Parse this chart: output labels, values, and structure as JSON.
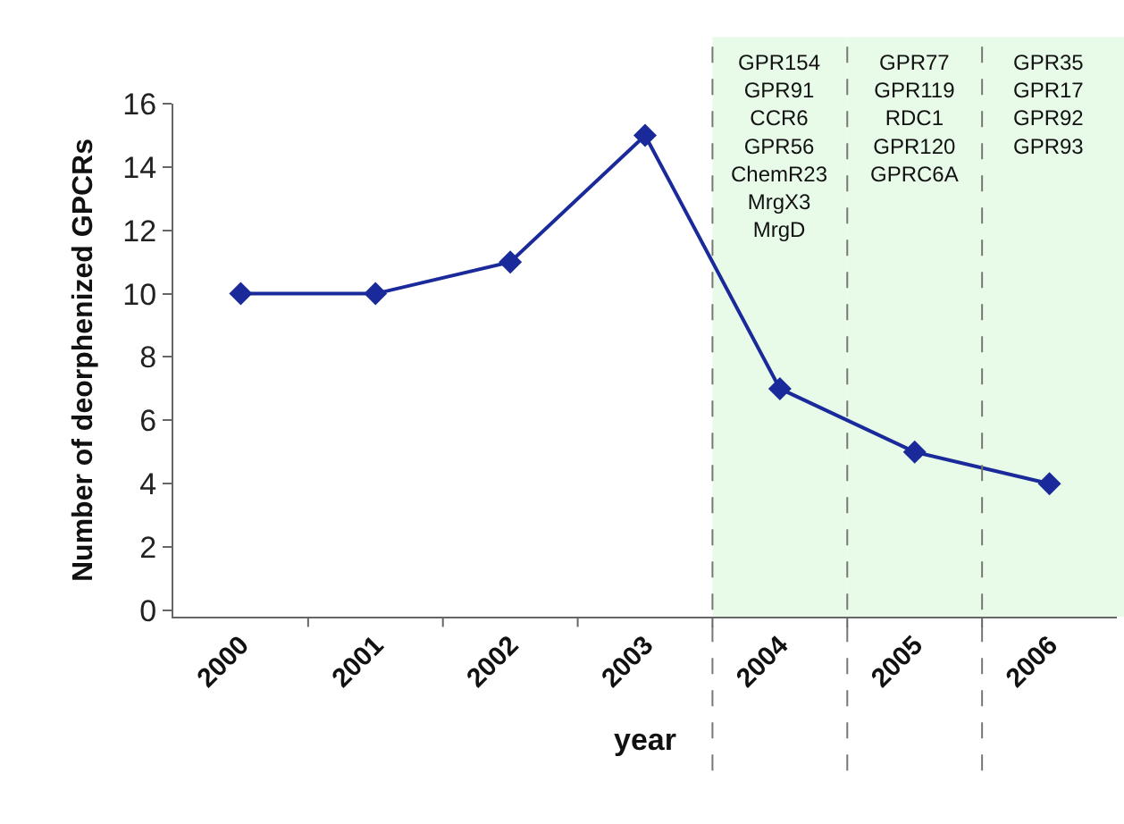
{
  "chart_data": {
    "type": "line",
    "xlabel": "year",
    "ylabel": "Number of deorphenized GPCRs",
    "categories": [
      "2000",
      "2001",
      "2002",
      "2003",
      "2004",
      "2005",
      "2006"
    ],
    "series": [
      {
        "color": "#1a2a9a",
        "values": [
          10,
          10,
          11,
          15,
          7,
          5,
          4
        ]
      }
    ],
    "ylim": [
      -0.2,
      16
    ],
    "yticks": [
      0,
      2,
      4,
      6,
      8,
      10,
      12,
      14,
      16
    ],
    "marker": "diamond",
    "line_style": "solid",
    "bands": [
      {
        "axis": "x",
        "from": "2004",
        "to": "2004",
        "color": "#e8fbe8",
        "label": "GPR154\nGPR91\nCCR6\nGPR56\nChemR23\nMrgX3\nMrgD"
      },
      {
        "axis": "x",
        "from": "2005",
        "to": "2005",
        "color": "#e8fbe8",
        "label": "GPR77\nGPR119\nRDC1\nGPR120\nGPRC6A"
      },
      {
        "axis": "x",
        "from": "2006",
        "to": "2006",
        "color": "#e8fbe8",
        "label": "GPR35\nGPR17\nGPR92\nGPR93"
      }
    ]
  }
}
